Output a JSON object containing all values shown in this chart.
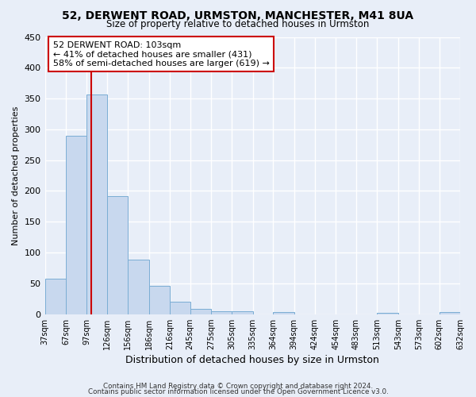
{
  "title": "52, DERWENT ROAD, URMSTON, MANCHESTER, M41 8UA",
  "subtitle": "Size of property relative to detached houses in Urmston",
  "xlabel": "Distribution of detached houses by size in Urmston",
  "ylabel": "Number of detached properties",
  "bar_left_edges": [
    37,
    67,
    97,
    126,
    156,
    186,
    216,
    245,
    275,
    305,
    335,
    364,
    394,
    424,
    454,
    483,
    513,
    543,
    573,
    602
  ],
  "bar_widths": [
    30,
    30,
    29,
    30,
    30,
    30,
    29,
    30,
    30,
    30,
    29,
    30,
    30,
    30,
    29,
    30,
    30,
    30,
    29,
    30
  ],
  "bar_heights": [
    58,
    290,
    356,
    191,
    89,
    46,
    20,
    9,
    5,
    5,
    0,
    3,
    0,
    0,
    0,
    0,
    2,
    0,
    0,
    3
  ],
  "bar_color": "#c8d8ee",
  "bar_edge_color": "#7aadd4",
  "x_tick_labels": [
    "37sqm",
    "67sqm",
    "97sqm",
    "126sqm",
    "156sqm",
    "186sqm",
    "216sqm",
    "245sqm",
    "275sqm",
    "305sqm",
    "335sqm",
    "364sqm",
    "394sqm",
    "424sqm",
    "454sqm",
    "483sqm",
    "513sqm",
    "543sqm",
    "573sqm",
    "602sqm",
    "632sqm"
  ],
  "ylim": [
    0,
    450
  ],
  "yticks": [
    0,
    50,
    100,
    150,
    200,
    250,
    300,
    350,
    400,
    450
  ],
  "vline_x": 103,
  "vline_color": "#cc0000",
  "annotation_text": "52 DERWENT ROAD: 103sqm\n← 41% of detached houses are smaller (431)\n58% of semi-detached houses are larger (619) →",
  "annotation_box_color": "#ffffff",
  "annotation_box_edge": "#cc0000",
  "background_color": "#e8eef8",
  "grid_color": "#ffffff",
  "footer_line1": "Contains HM Land Registry data © Crown copyright and database right 2024.",
  "footer_line2": "Contains public sector information licensed under the Open Government Licence v3.0."
}
